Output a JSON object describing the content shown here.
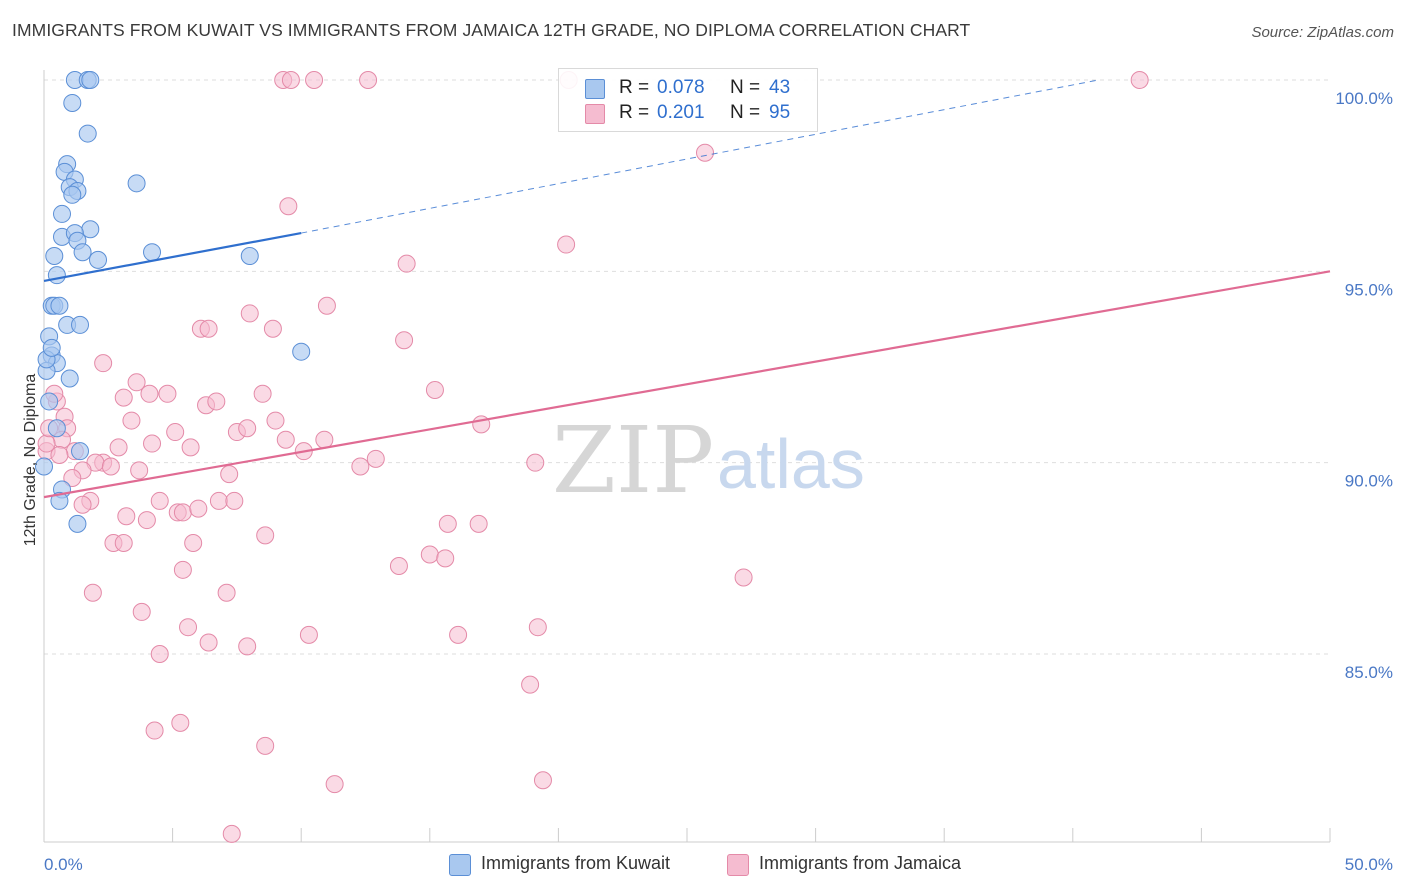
{
  "header": {
    "title": "IMMIGRANTS FROM KUWAIT VS IMMIGRANTS FROM JAMAICA 12TH GRADE, NO DIPLOMA CORRELATION CHART",
    "source": "Source: ZipAtlas.com"
  },
  "watermark": {
    "zip": "ZIP",
    "atlas": "atlas"
  },
  "legend_top": {
    "rows": [
      {
        "r_label": "R =",
        "r_value": "0.078",
        "n_label": "N =",
        "n_value": "43"
      },
      {
        "r_label": "R =",
        "r_value": "0.201",
        "n_label": "N =",
        "n_value": "95"
      }
    ]
  },
  "legend_bottom": {
    "kuwait": "Immigrants from Kuwait",
    "jamaica": "Immigrants from Jamaica"
  },
  "colors": {
    "kuwait_fill": "#a9c8ef",
    "kuwait_stroke": "#5b8fd6",
    "kuwait_line": "#2f6fce",
    "jamaica_fill": "#f5bcd0",
    "jamaica_stroke": "#e48aa8",
    "jamaica_line": "#e06b93",
    "tick_text": "#4a78c5"
  },
  "chart_data": {
    "type": "scatter",
    "title": "IMMIGRANTS FROM KUWAIT VS IMMIGRANTS FROM JAMAICA 12TH GRADE, NO DIPLOMA CORRELATION CHART",
    "xlabel": "",
    "ylabel": "12th Grade, No Diploma",
    "xlim": [
      0,
      50
    ],
    "ylim": [
      80.2,
      100.5
    ],
    "x_ticks": [
      "0.0%",
      "50.0%"
    ],
    "y_ticks": [
      {
        "value": 100,
        "label": "100.0%"
      },
      {
        "value": 95,
        "label": "95.0%"
      },
      {
        "value": 90,
        "label": "90.0%"
      },
      {
        "value": 85,
        "label": "85.0%"
      }
    ],
    "grid": true,
    "legend_position": "top-center",
    "series": [
      {
        "name": "Immigrants from Kuwait",
        "R": 0.078,
        "N": 43,
        "trend": {
          "x0": 0,
          "y0": 94.75,
          "x1": 10,
          "y1": 96.0,
          "dashed_extension_to": [
            41,
            100.0
          ]
        },
        "points": [
          [
            1.2,
            100.0
          ],
          [
            1.7,
            100.0
          ],
          [
            1.8,
            100.0
          ],
          [
            1.1,
            99.4
          ],
          [
            1.7,
            98.6
          ],
          [
            0.9,
            97.8
          ],
          [
            0.8,
            97.6
          ],
          [
            1.2,
            97.4
          ],
          [
            1.0,
            97.2
          ],
          [
            1.3,
            97.1
          ],
          [
            1.1,
            97.0
          ],
          [
            3.6,
            97.3
          ],
          [
            0.7,
            96.5
          ],
          [
            1.8,
            96.1
          ],
          [
            0.7,
            95.9
          ],
          [
            1.2,
            96.0
          ],
          [
            1.3,
            95.8
          ],
          [
            1.5,
            95.5
          ],
          [
            2.1,
            95.3
          ],
          [
            0.4,
            95.4
          ],
          [
            4.2,
            95.5
          ],
          [
            8.0,
            95.4
          ],
          [
            0.5,
            94.9
          ],
          [
            0.3,
            94.1
          ],
          [
            0.4,
            94.1
          ],
          [
            0.9,
            93.6
          ],
          [
            1.4,
            93.6
          ],
          [
            0.2,
            93.3
          ],
          [
            0.3,
            92.8
          ],
          [
            0.5,
            92.6
          ],
          [
            10.0,
            92.9
          ],
          [
            0.1,
            92.4
          ],
          [
            1.0,
            92.2
          ],
          [
            0.2,
            91.6
          ],
          [
            0.5,
            90.9
          ],
          [
            1.4,
            90.3
          ],
          [
            0.0,
            89.9
          ],
          [
            0.7,
            89.3
          ],
          [
            0.6,
            89.0
          ],
          [
            1.3,
            88.4
          ],
          [
            0.1,
            92.7
          ],
          [
            0.6,
            94.1
          ],
          [
            0.3,
            93.0
          ]
        ]
      },
      {
        "name": "Immigrants from Jamaica",
        "R": 0.201,
        "N": 95,
        "trend": {
          "x0": 0,
          "y0": 89.1,
          "x1": 50,
          "y1": 95.0
        },
        "points": [
          [
            9.3,
            100.0
          ],
          [
            9.6,
            100.0
          ],
          [
            10.5,
            100.0
          ],
          [
            12.6,
            100.0
          ],
          [
            20.4,
            100.0
          ],
          [
            42.6,
            100.0
          ],
          [
            25.7,
            98.1
          ],
          [
            9.5,
            96.7
          ],
          [
            20.3,
            95.7
          ],
          [
            14.1,
            95.2
          ],
          [
            11.0,
            94.1
          ],
          [
            8.0,
            93.9
          ],
          [
            6.1,
            93.5
          ],
          [
            6.4,
            93.5
          ],
          [
            8.9,
            93.5
          ],
          [
            14.0,
            93.2
          ],
          [
            2.3,
            92.6
          ],
          [
            3.6,
            92.1
          ],
          [
            4.1,
            91.8
          ],
          [
            4.8,
            91.8
          ],
          [
            8.5,
            91.8
          ],
          [
            15.2,
            91.9
          ],
          [
            3.1,
            91.7
          ],
          [
            6.3,
            91.5
          ],
          [
            6.7,
            91.6
          ],
          [
            0.5,
            91.6
          ],
          [
            0.8,
            91.2
          ],
          [
            3.4,
            91.1
          ],
          [
            9.0,
            91.1
          ],
          [
            17.0,
            91.0
          ],
          [
            7.5,
            90.8
          ],
          [
            7.9,
            90.9
          ],
          [
            5.1,
            90.8
          ],
          [
            0.9,
            90.9
          ],
          [
            0.7,
            90.6
          ],
          [
            9.4,
            90.6
          ],
          [
            10.9,
            90.6
          ],
          [
            4.2,
            90.5
          ],
          [
            5.7,
            90.4
          ],
          [
            10.1,
            90.3
          ],
          [
            2.9,
            90.4
          ],
          [
            0.1,
            90.3
          ],
          [
            1.2,
            90.3
          ],
          [
            2.3,
            90.0
          ],
          [
            2.0,
            90.0
          ],
          [
            2.6,
            89.9
          ],
          [
            1.5,
            89.8
          ],
          [
            3.7,
            89.8
          ],
          [
            12.9,
            90.1
          ],
          [
            19.1,
            90.0
          ],
          [
            12.3,
            89.9
          ],
          [
            7.2,
            89.7
          ],
          [
            1.1,
            89.6
          ],
          [
            1.8,
            89.0
          ],
          [
            4.5,
            89.0
          ],
          [
            6.8,
            89.0
          ],
          [
            7.4,
            89.0
          ],
          [
            1.5,
            88.9
          ],
          [
            5.2,
            88.7
          ],
          [
            5.4,
            88.7
          ],
          [
            3.2,
            88.6
          ],
          [
            6.0,
            88.8
          ],
          [
            4.0,
            88.5
          ],
          [
            15.7,
            88.4
          ],
          [
            16.9,
            88.4
          ],
          [
            8.6,
            88.1
          ],
          [
            2.7,
            87.9
          ],
          [
            3.1,
            87.9
          ],
          [
            5.8,
            87.9
          ],
          [
            15.0,
            87.6
          ],
          [
            15.6,
            87.5
          ],
          [
            13.8,
            87.3
          ],
          [
            5.4,
            87.2
          ],
          [
            27.2,
            87.0
          ],
          [
            1.9,
            86.6
          ],
          [
            7.1,
            86.6
          ],
          [
            3.8,
            86.1
          ],
          [
            5.6,
            85.7
          ],
          [
            10.3,
            85.5
          ],
          [
            16.1,
            85.5
          ],
          [
            19.2,
            85.7
          ],
          [
            6.4,
            85.3
          ],
          [
            7.9,
            85.2
          ],
          [
            4.5,
            85.0
          ],
          [
            18.9,
            84.2
          ],
          [
            4.3,
            83.0
          ],
          [
            5.3,
            83.2
          ],
          [
            8.6,
            82.6
          ],
          [
            11.3,
            81.6
          ],
          [
            19.4,
            81.7
          ],
          [
            7.3,
            80.3
          ],
          [
            0.1,
            90.5
          ],
          [
            0.4,
            91.8
          ],
          [
            0.2,
            90.9
          ],
          [
            0.6,
            90.2
          ]
        ]
      }
    ]
  }
}
